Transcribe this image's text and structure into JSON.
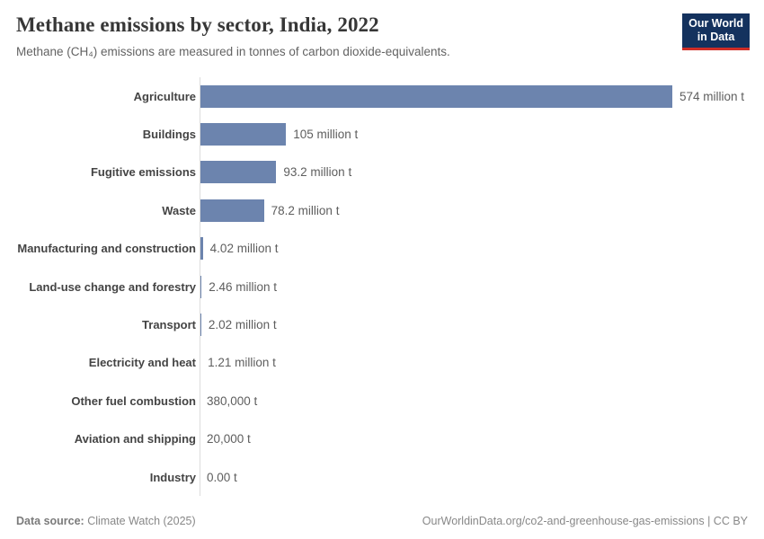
{
  "header": {
    "title": "Methane emissions by sector, India, 2022",
    "subtitle": "Methane (CH₄) emissions are measured in tonnes of carbon dioxide-equivalents.",
    "logo": {
      "line1": "Our World",
      "line2": "in Data"
    }
  },
  "chart_data": {
    "type": "bar",
    "orientation": "horizontal",
    "title": "Methane emissions by sector, India, 2022",
    "unit": "tonnes of carbon dioxide-equivalents",
    "categories": [
      "Agriculture",
      "Buildings",
      "Fugitive emissions",
      "Waste",
      "Manufacturing and construction",
      "Land-use change and forestry",
      "Transport",
      "Electricity and heat",
      "Other fuel combustion",
      "Aviation and shipping",
      "Industry"
    ],
    "values_million_t": [
      574,
      105,
      93.2,
      78.2,
      4.02,
      2.46,
      2.02,
      1.21,
      0.38,
      0.02,
      0
    ],
    "value_labels": [
      "574 million t",
      "105 million t",
      "93.2 million t",
      "78.2 million t",
      "4.02 million t",
      "2.46 million t",
      "2.02 million t",
      "1.21 million t",
      "380,000 t",
      "20,000 t",
      "0.00 t"
    ],
    "xlim": [
      0,
      574
    ],
    "grid": "off",
    "legend": "none",
    "bar_color": "#6c84ae"
  },
  "footer": {
    "source_prefix": "Data source:",
    "source": "Climate Watch (2025)",
    "link": "OurWorldinData.org/co2-and-greenhouse-gas-emissions | CC BY"
  }
}
